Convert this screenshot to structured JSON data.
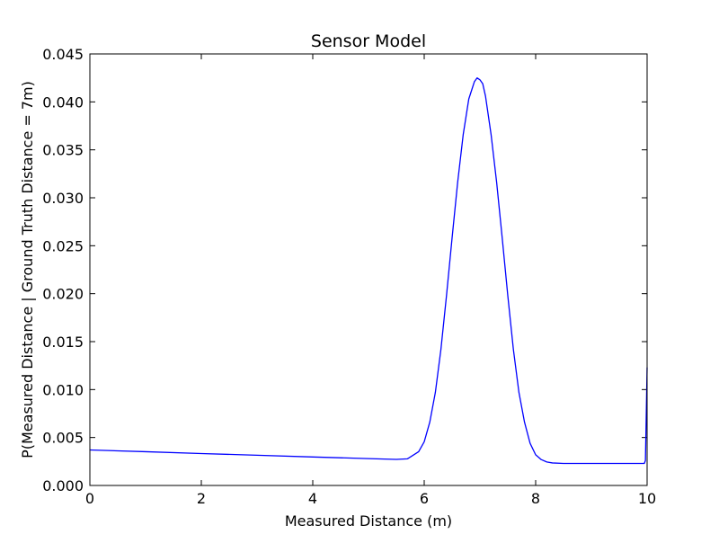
{
  "chart_data": {
    "type": "line",
    "title": "Sensor Model",
    "xlabel": "Measured Distance (m)",
    "ylabel": "P(Measured Distance | Ground Truth Distance = 7m)",
    "xlim": [
      0,
      10
    ],
    "ylim": [
      0,
      0.045
    ],
    "x_ticks": [
      0,
      2,
      4,
      6,
      8,
      10
    ],
    "x_tick_labels": [
      "0",
      "2",
      "4",
      "6",
      "8",
      "10"
    ],
    "y_ticks": [
      0,
      0.005,
      0.01,
      0.015,
      0.02,
      0.025,
      0.03,
      0.035,
      0.04,
      0.045
    ],
    "y_tick_labels": [
      "0.000",
      "0.005",
      "0.010",
      "0.015",
      "0.020",
      "0.025",
      "0.030",
      "0.035",
      "0.040",
      "0.045"
    ],
    "grid": false,
    "series": [
      {
        "color": "#0000ff",
        "x": [
          0,
          1,
          2,
          3,
          4,
          5,
          5.5,
          5.7,
          5.9,
          6.0,
          6.1,
          6.2,
          6.3,
          6.4,
          6.5,
          6.6,
          6.7,
          6.8,
          6.9,
          6.95,
          7.0,
          7.05,
          7.1,
          7.2,
          7.3,
          7.4,
          7.5,
          7.6,
          7.7,
          7.8,
          7.9,
          8.0,
          8.1,
          8.2,
          8.3,
          8.5,
          9.0,
          9.5,
          9.95,
          9.97,
          10.0
        ],
        "y": [
          0.0037,
          0.00352,
          0.00333,
          0.00315,
          0.00297,
          0.0028,
          0.00272,
          0.00278,
          0.00352,
          0.00455,
          0.0066,
          0.0097,
          0.0142,
          0.0198,
          0.0258,
          0.0316,
          0.0366,
          0.0403,
          0.0421,
          0.0425,
          0.0423,
          0.0419,
          0.0406,
          0.0366,
          0.0316,
          0.0258,
          0.0198,
          0.0142,
          0.0097,
          0.0066,
          0.0044,
          0.0032,
          0.0027,
          0.00245,
          0.00235,
          0.0023,
          0.0023,
          0.0023,
          0.0023,
          0.0026,
          0.0123
        ]
      }
    ]
  }
}
